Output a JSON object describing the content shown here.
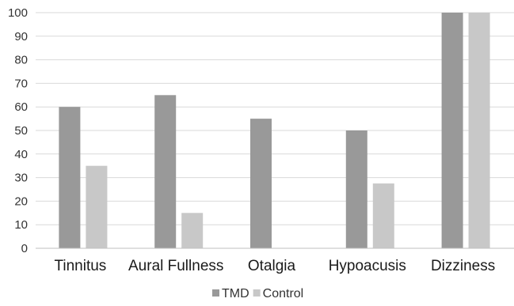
{
  "chart_data": {
    "type": "bar",
    "title": "",
    "xlabel": "",
    "ylabel": "",
    "categories": [
      "Tinnitus",
      "Aural Fullness",
      "Otalgia",
      "Hypoacusis",
      "Dizziness"
    ],
    "series": [
      {
        "name": "TMD",
        "values": [
          60,
          65,
          55,
          50,
          100
        ],
        "color": "#999999"
      },
      {
        "name": "Control",
        "values": [
          35,
          15,
          0,
          27.5,
          100
        ],
        "color": "#c8c8c8"
      }
    ],
    "ylim": [
      0,
      100
    ],
    "yticks": [
      "0",
      "10",
      "20",
      "30",
      "40",
      "50",
      "60",
      "70",
      "80",
      "90",
      "100"
    ],
    "grid": true,
    "legend_position": "bottom"
  }
}
